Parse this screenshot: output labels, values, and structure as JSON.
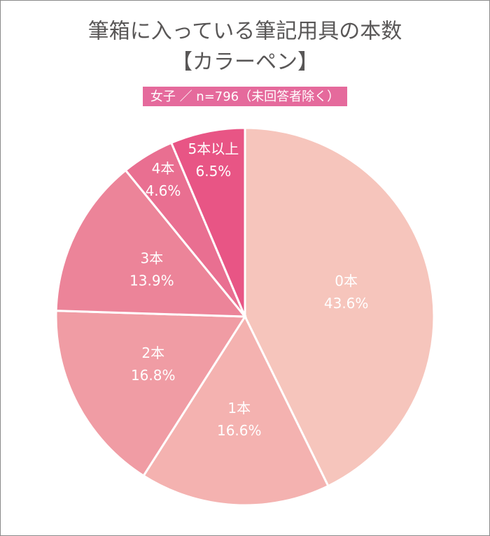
{
  "chart_data": {
    "type": "pie",
    "title": [
      "筆箱に入っている筆記用具の本数",
      "【カラーペン】"
    ],
    "subtitle": "女子 ／ n=796（未回答者除く）",
    "categories": [
      "0本",
      "1本",
      "2本",
      "3本",
      "4本",
      "5本以上"
    ],
    "values": [
      43.6,
      16.6,
      16.8,
      13.9,
      4.6,
      6.5
    ],
    "value_labels": [
      "43.6%",
      "16.6%",
      "16.8%",
      "13.9%",
      "4.6%",
      "6.5%"
    ],
    "colors": [
      "#f6c5bc",
      "#f4b2b0",
      "#f09ca4",
      "#ec8499",
      "#e96f91",
      "#e85585"
    ]
  }
}
